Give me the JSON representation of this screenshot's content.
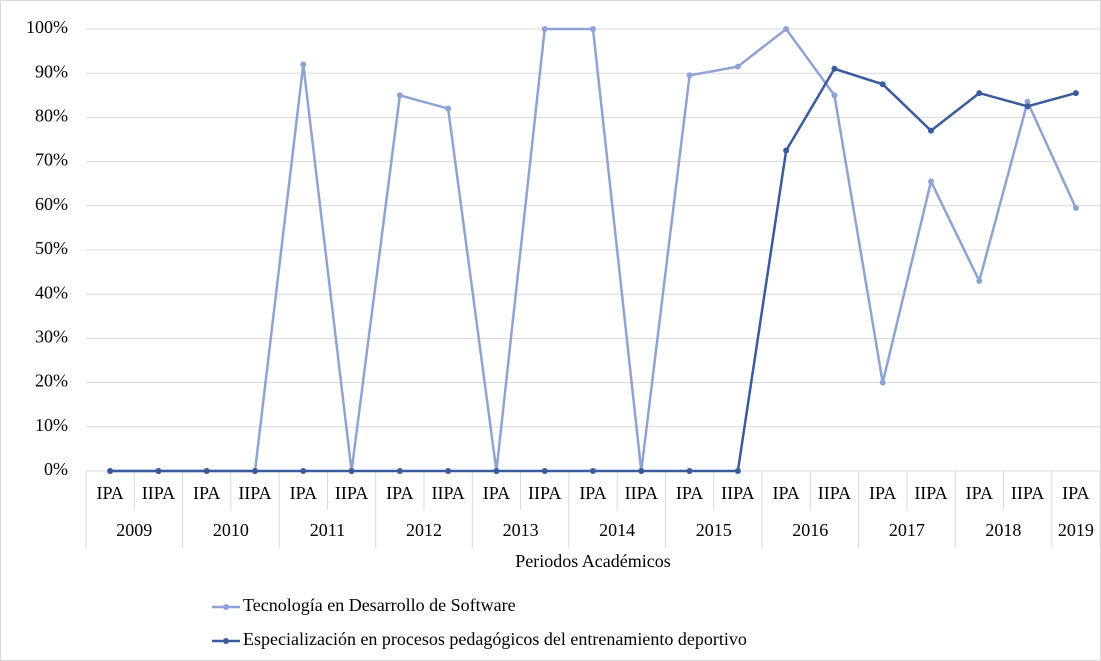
{
  "chart_data": {
    "type": "line",
    "xlabel": "Periodos Académicos",
    "groups": [
      {
        "label": "2009",
        "categories": [
          "IPA",
          "IIPA"
        ]
      },
      {
        "label": "2010",
        "categories": [
          "IPA",
          "IIPA"
        ]
      },
      {
        "label": "2011",
        "categories": [
          "IPA",
          "IIPA"
        ]
      },
      {
        "label": "2012",
        "categories": [
          "IPA",
          "IIPA"
        ]
      },
      {
        "label": "2013",
        "categories": [
          "IPA",
          "IIPA"
        ]
      },
      {
        "label": "2014",
        "categories": [
          "IPA",
          "IIPA"
        ]
      },
      {
        "label": "2015",
        "categories": [
          "IPA",
          "IIPA"
        ]
      },
      {
        "label": "2016",
        "categories": [
          "IPA",
          "IIPA"
        ]
      },
      {
        "label": "2017",
        "categories": [
          "IPA",
          "IIPA"
        ]
      },
      {
        "label": "2018",
        "categories": [
          "IPA",
          "IIPA"
        ]
      },
      {
        "label": "2019",
        "categories": [
          "IPA"
        ]
      }
    ],
    "series": [
      {
        "name": "Tecnología en Desarrollo de Software",
        "color": "#8ea3d3",
        "values": [
          0,
          0,
          0,
          0,
          92,
          0,
          85,
          82,
          0,
          100,
          100,
          0,
          89.5,
          91.5,
          100,
          85,
          20,
          65.5,
          43,
          83.5,
          59.5
        ]
      },
      {
        "name": "Especialización en procesos pedagógicos del entrenamiento deportivo",
        "color": "#3a5b9c",
        "values": [
          0,
          0,
          0,
          0,
          0,
          0,
          0,
          0,
          0,
          0,
          0,
          0,
          0,
          0,
          72.5,
          91,
          87.5,
          77,
          85.5,
          82.5,
          85.5
        ]
      }
    ],
    "ylim": [
      0,
      100
    ],
    "yticks": [
      {
        "value": 0,
        "label": "0%"
      },
      {
        "value": 10,
        "label": "10%"
      },
      {
        "value": 20,
        "label": "20%"
      },
      {
        "value": 30,
        "label": "30%"
      },
      {
        "value": 40,
        "label": "40%"
      },
      {
        "value": 50,
        "label": "50%"
      },
      {
        "value": 60,
        "label": "60%"
      },
      {
        "value": 70,
        "label": "70%"
      },
      {
        "value": 80,
        "label": "80%"
      },
      {
        "value": 90,
        "label": "90%"
      },
      {
        "value": 100,
        "label": "100%"
      }
    ],
    "grid": true,
    "legend": "bottom"
  }
}
